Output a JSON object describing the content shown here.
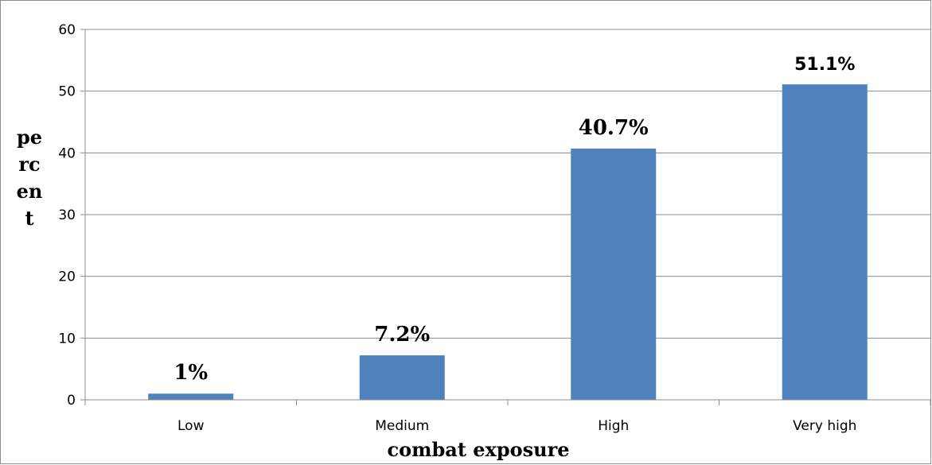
{
  "chart_data": {
    "type": "bar",
    "categories": [
      "Low",
      "Medium",
      "High",
      "Very high"
    ],
    "values": [
      1,
      7.2,
      40.7,
      51.1
    ],
    "data_labels": [
      "1%",
      "7.2%",
      "40.7%",
      "51.1%"
    ],
    "title": "",
    "xlabel": "combat exposure",
    "ylabel": "percent",
    "ylim": [
      0,
      60
    ],
    "yticks": [
      0,
      10,
      20,
      30,
      40,
      50,
      60
    ],
    "grid": true,
    "bar_color": "#4f81bd"
  }
}
